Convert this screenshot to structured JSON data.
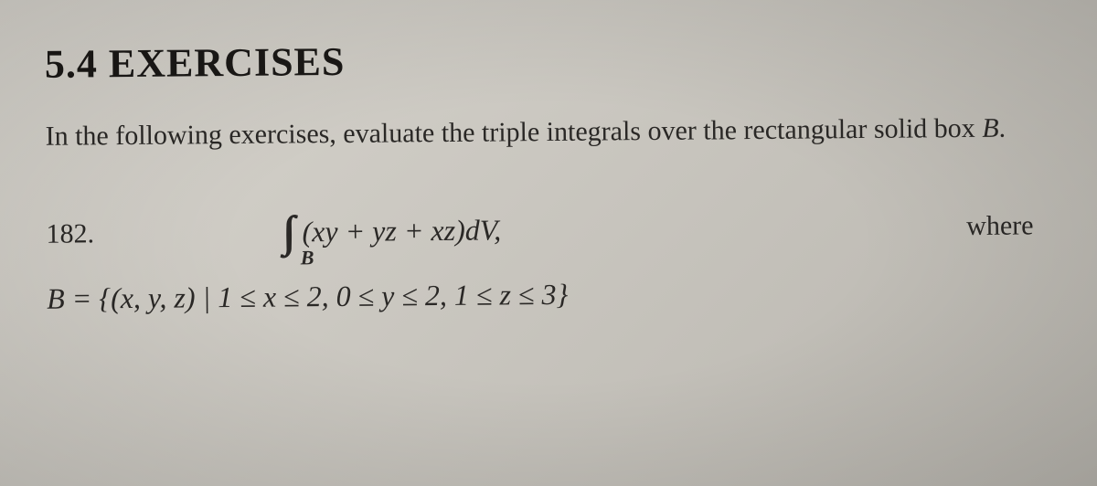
{
  "section": {
    "number": "5.4",
    "title": "EXERCISES"
  },
  "instruction": {
    "prefix": "In the following exercises, evaluate the triple integrals over the rectangular solid box ",
    "box_symbol": "B",
    "suffix": "."
  },
  "problem": {
    "number": "182.",
    "integral_region": "B",
    "integrand": "(xy + yz + xz)dV,",
    "where_label": "where",
    "domain_prefix": "B = {(x, y, z) | ",
    "domain_condition": "1 ≤ x ≤ 2, 0 ≤ y ≤ 2, 1 ≤ z ≤ 3",
    "domain_suffix": "}"
  },
  "styling": {
    "background_color": "#c8c5be",
    "text_color": "#2a2826",
    "heading_fontsize": 44,
    "body_fontsize": 30,
    "math_fontsize": 32,
    "font_family": "Times New Roman"
  }
}
